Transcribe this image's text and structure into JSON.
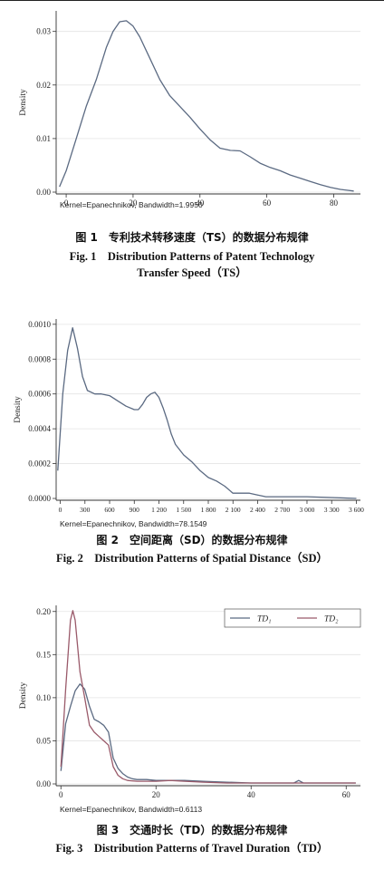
{
  "figures": [
    {
      "caption_cn": "图 1　专利技术转移速度（TS）的数据分布规律",
      "caption_en_1": "Fig. 1　Distribution Patterns of Patent Technology",
      "caption_en_2": "Transfer Speed（TS）",
      "kernel_note": "Kernel=Epanechnikov, Bandwidth=1.9950"
    },
    {
      "caption_cn": "图 2　空间距离（SD）的数据分布规律",
      "caption_en_1": "Fig. 2　Distribution Patterns of Spatial Distance（SD）",
      "caption_en_2": "",
      "kernel_note": "Kernel=Epanechnikov, Bandwidth=78.1549"
    },
    {
      "caption_cn": "图 3　交通时长（TD）的数据分布规律",
      "caption_en_1": "Fig. 3　Distribution Patterns of Travel Duration（TD）",
      "caption_en_2": "",
      "kernel_note": "Kernel=Epanechnikov, Bandwidth=0.6113"
    }
  ],
  "chart_data": [
    {
      "type": "line",
      "title": "",
      "xlabel": "",
      "ylabel": "Density",
      "xlim": [
        -3,
        88
      ],
      "ylim": [
        0,
        0.0335
      ],
      "xticks": [
        0,
        20,
        40,
        60,
        80
      ],
      "xtick_labels": [
        "0",
        "20",
        "40",
        "60",
        "80"
      ],
      "yticks": [
        0,
        0.01,
        0.02,
        0.03
      ],
      "ytick_labels": [
        "0.00",
        "0.01",
        "0.02",
        "0.03"
      ],
      "grid": true,
      "color": "#5b6a82",
      "series": [
        {
          "name": "",
          "x": [
            -2,
            0,
            3,
            6,
            9,
            12,
            14,
            16,
            18,
            20,
            22,
            25,
            28,
            31,
            34,
            37,
            40,
            43,
            46,
            49,
            52,
            55,
            58,
            61,
            64,
            67,
            70,
            73,
            76,
            79,
            82,
            86
          ],
          "y": [
            0.001,
            0.004,
            0.01,
            0.016,
            0.021,
            0.027,
            0.03,
            0.0318,
            0.032,
            0.031,
            0.029,
            0.025,
            0.021,
            0.018,
            0.016,
            0.014,
            0.0118,
            0.0098,
            0.0082,
            0.0078,
            0.0077,
            0.0066,
            0.0054,
            0.0046,
            0.004,
            0.0032,
            0.0026,
            0.002,
            0.0014,
            0.0009,
            0.0005,
            0.0002
          ]
        }
      ]
    },
    {
      "type": "line",
      "title": "",
      "xlabel": "",
      "ylabel": "Density",
      "xlim": [
        -50,
        3650
      ],
      "ylim": [
        0,
        0.00102
      ],
      "xticks": [
        0,
        300,
        600,
        900,
        1200,
        1500,
        1800,
        2100,
        2400,
        2700,
        3000,
        3300,
        3600
      ],
      "xtick_labels": [
        "0",
        "300",
        "600",
        "900",
        "1 200",
        "1 500",
        "1 800",
        "2 100",
        "2 400",
        "2 700",
        "3 000",
        "3 300",
        "3 600"
      ],
      "yticks": [
        0,
        0.0002,
        0.0004,
        0.0006,
        0.0008,
        0.001
      ],
      "ytick_labels": [
        "0.0000",
        "0.0002",
        "0.0004",
        "0.0006",
        "0.0008",
        "0.0010"
      ],
      "grid": true,
      "color": "#5b6a82",
      "series": [
        {
          "name": "",
          "x": [
            -30,
            30,
            90,
            150,
            210,
            270,
            330,
            420,
            500,
            600,
            700,
            800,
            900,
            950,
            1000,
            1050,
            1100,
            1150,
            1200,
            1250,
            1300,
            1350,
            1400,
            1500,
            1600,
            1700,
            1800,
            1900,
            2000,
            2100,
            2200,
            2300,
            2400,
            2500,
            2700,
            3000,
            3300,
            3600
          ],
          "y": [
            0.00016,
            0.0006,
            0.00085,
            0.00098,
            0.00086,
            0.0007,
            0.00062,
            0.0006,
            0.0006,
            0.00059,
            0.00056,
            0.00053,
            0.00051,
            0.00051,
            0.00054,
            0.00058,
            0.0006,
            0.00061,
            0.00058,
            0.00052,
            0.00045,
            0.00037,
            0.00031,
            0.00025,
            0.00021,
            0.00016,
            0.00012,
            0.0001,
            7e-05,
            3e-05,
            3e-05,
            3e-05,
            2e-05,
            1e-05,
            1e-05,
            1e-05,
            5e-06,
            0.0
          ]
        }
      ]
    },
    {
      "type": "line",
      "title": "",
      "xlabel": "",
      "ylabel": "Density",
      "xlim": [
        -1,
        63
      ],
      "ylim": [
        0,
        0.205
      ],
      "xticks": [
        0,
        20,
        40,
        60
      ],
      "xtick_labels": [
        "0",
        "20",
        "40",
        "60"
      ],
      "yticks": [
        0,
        0.05,
        0.1,
        0.15,
        0.2
      ],
      "ytick_labels": [
        "0.00",
        "0.05",
        "0.10",
        "0.15",
        "0.20"
      ],
      "grid": true,
      "legend": "top-right",
      "series": [
        {
          "name": "TD₁",
          "color": "#5b6a82",
          "x": [
            0,
            1,
            2,
            3,
            4,
            5,
            6,
            7,
            8,
            9,
            10,
            11,
            12,
            13,
            14,
            15,
            16,
            18,
            20,
            23,
            26,
            30,
            35,
            40,
            45,
            49,
            50,
            51,
            55,
            60,
            62
          ],
          "y": [
            0.015,
            0.07,
            0.09,
            0.108,
            0.116,
            0.11,
            0.09,
            0.075,
            0.072,
            0.068,
            0.06,
            0.03,
            0.018,
            0.012,
            0.008,
            0.006,
            0.005,
            0.005,
            0.004,
            0.004,
            0.004,
            0.003,
            0.002,
            0.001,
            0.001,
            0.001,
            0.004,
            0.001,
            0.001,
            0.001,
            0.001
          ]
        },
        {
          "name": "TD₂",
          "color": "#9a5a6a",
          "x": [
            0,
            1,
            2,
            2.5,
            3,
            4,
            5,
            6,
            7,
            8,
            9,
            10,
            11,
            12,
            13,
            14,
            16,
            18,
            20,
            23,
            26,
            30,
            35,
            40,
            45,
            50,
            55,
            60,
            62
          ],
          "y": [
            0.02,
            0.11,
            0.19,
            0.201,
            0.19,
            0.13,
            0.1,
            0.068,
            0.06,
            0.055,
            0.05,
            0.045,
            0.02,
            0.01,
            0.006,
            0.004,
            0.003,
            0.003,
            0.003,
            0.004,
            0.003,
            0.002,
            0.001,
            0.001,
            0.001,
            0.001,
            0.001,
            0.001,
            0.001
          ]
        }
      ]
    }
  ]
}
